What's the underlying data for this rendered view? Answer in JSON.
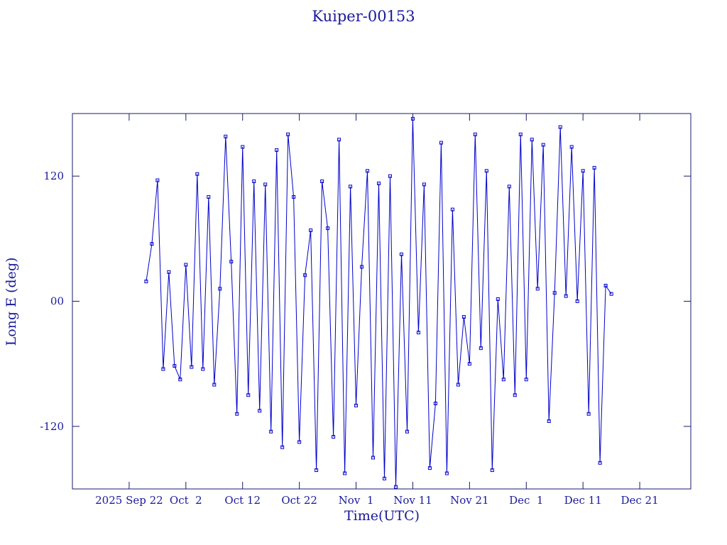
{
  "chart_data": {
    "type": "line",
    "title": "Kuiper-00153",
    "x_label": "Time(UTC)",
    "y_label": "Long E (deg)",
    "xlim": [
      "2025-09-12",
      "2025-12-30"
    ],
    "xticks": [
      {
        "value": "2025-09-22",
        "label": "2025 Sep 22"
      },
      {
        "value": "2025-10-02",
        "label": "Oct  2"
      },
      {
        "value": "2025-10-12",
        "label": "Oct 12"
      },
      {
        "value": "2025-10-22",
        "label": "Oct 22"
      },
      {
        "value": "2025-11-01",
        "label": "Nov  1"
      },
      {
        "value": "2025-11-11",
        "label": "Nov 11"
      },
      {
        "value": "2025-11-21",
        "label": "Nov 21"
      },
      {
        "value": "2025-12-01",
        "label": "Dec  1"
      },
      {
        "value": "2025-12-11",
        "label": "Dec 11"
      },
      {
        "value": "2025-12-21",
        "label": "Dec 21"
      }
    ],
    "ylim": [
      -180,
      180
    ],
    "yticks": [
      -120,
      {
        "value": 0,
        "label": "00"
      },
      120
    ],
    "color": "#0000cc",
    "x": [
      "2025-09-25",
      "2025-09-26",
      "2025-09-27",
      "2025-09-28",
      "2025-09-29",
      "2025-09-30",
      "2025-10-01",
      "2025-10-02",
      "2025-10-03",
      "2025-10-04",
      "2025-10-05",
      "2025-10-06",
      "2025-10-07",
      "2025-10-08",
      "2025-10-09",
      "2025-10-10",
      "2025-10-11",
      "2025-10-12",
      "2025-10-13",
      "2025-10-14",
      "2025-10-15",
      "2025-10-16",
      "2025-10-17",
      "2025-10-18",
      "2025-10-19",
      "2025-10-20",
      "2025-10-21",
      "2025-10-22",
      "2025-10-23",
      "2025-10-24",
      "2025-10-25",
      "2025-10-26",
      "2025-10-27",
      "2025-10-28",
      "2025-10-29",
      "2025-10-30",
      "2025-10-31",
      "2025-11-01",
      "2025-11-02",
      "2025-11-03",
      "2025-11-04",
      "2025-11-05",
      "2025-11-06",
      "2025-11-07",
      "2025-11-08",
      "2025-11-09",
      "2025-11-10",
      "2025-11-11",
      "2025-11-12",
      "2025-11-13",
      "2025-11-14",
      "2025-11-15",
      "2025-11-16",
      "2025-11-17",
      "2025-11-18",
      "2025-11-19",
      "2025-11-20",
      "2025-11-21",
      "2025-11-22",
      "2025-11-23",
      "2025-11-24",
      "2025-11-25",
      "2025-11-26",
      "2025-11-27",
      "2025-11-28",
      "2025-11-29",
      "2025-11-30",
      "2025-12-01",
      "2025-12-02",
      "2025-12-03",
      "2025-12-04",
      "2025-12-05",
      "2025-12-06",
      "2025-12-07",
      "2025-12-08",
      "2025-12-09",
      "2025-12-10",
      "2025-12-11",
      "2025-12-12",
      "2025-12-13",
      "2025-12-14",
      "2025-12-15",
      "2025-12-16"
    ],
    "values": [
      19,
      55,
      116,
      -65,
      28,
      -62,
      -75,
      35,
      -63,
      122,
      -65,
      100,
      -80,
      12,
      158,
      38,
      -108,
      148,
      -90,
      115,
      -105,
      112,
      -125,
      145,
      -140,
      160,
      100,
      -135,
      25,
      68,
      -162,
      115,
      70,
      -130,
      155,
      -165,
      110,
      -100,
      33,
      125,
      -150,
      113,
      -170,
      120,
      -178,
      45,
      -125,
      175,
      -30,
      112,
      -160,
      -98,
      152,
      -165,
      88,
      -80,
      -15,
      -60,
      160,
      -45,
      125,
      -162,
      2,
      -75,
      110,
      -90,
      160,
      -75,
      155,
      12,
      150,
      -115,
      8,
      167,
      5,
      148,
      0,
      125,
      -108,
      128,
      -155,
      15,
      7
    ]
  }
}
